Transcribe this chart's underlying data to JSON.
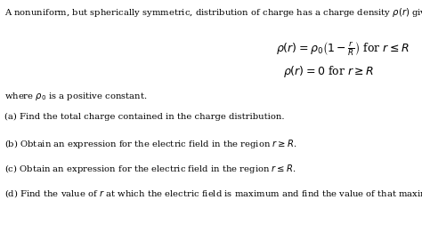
{
  "background_color": "#ffffff",
  "title_text": "A nonuniform, but spherically symmetric, distribution of charge has a charge density $\\rho\\left(r\\right)$ given as follows:",
  "eq1": "$\\rho\\left(r\\right) = \\rho_0\\left(1 - \\frac{r}{R}\\right)$ for $r \\leq R$",
  "eq2": "$\\rho\\left(r\\right) = 0$ for $r \\geq R$",
  "where_text": "where $\\rho_0$ is a positive constant.",
  "part_a": "(a) Find the total charge contained in the charge distribution.",
  "part_b": "(b) Obtain an expression for the electric field in the region $r \\geq R$.",
  "part_c": "(c) Obtain an expression for the electric field in the region $r \\leq R$.",
  "part_d": "(d) Find the value of $r$ at which the electric field is maximum and find the value of that maximum field.",
  "title_fontsize": 7.2,
  "eq_fontsize": 9.0,
  "body_fontsize": 7.2
}
